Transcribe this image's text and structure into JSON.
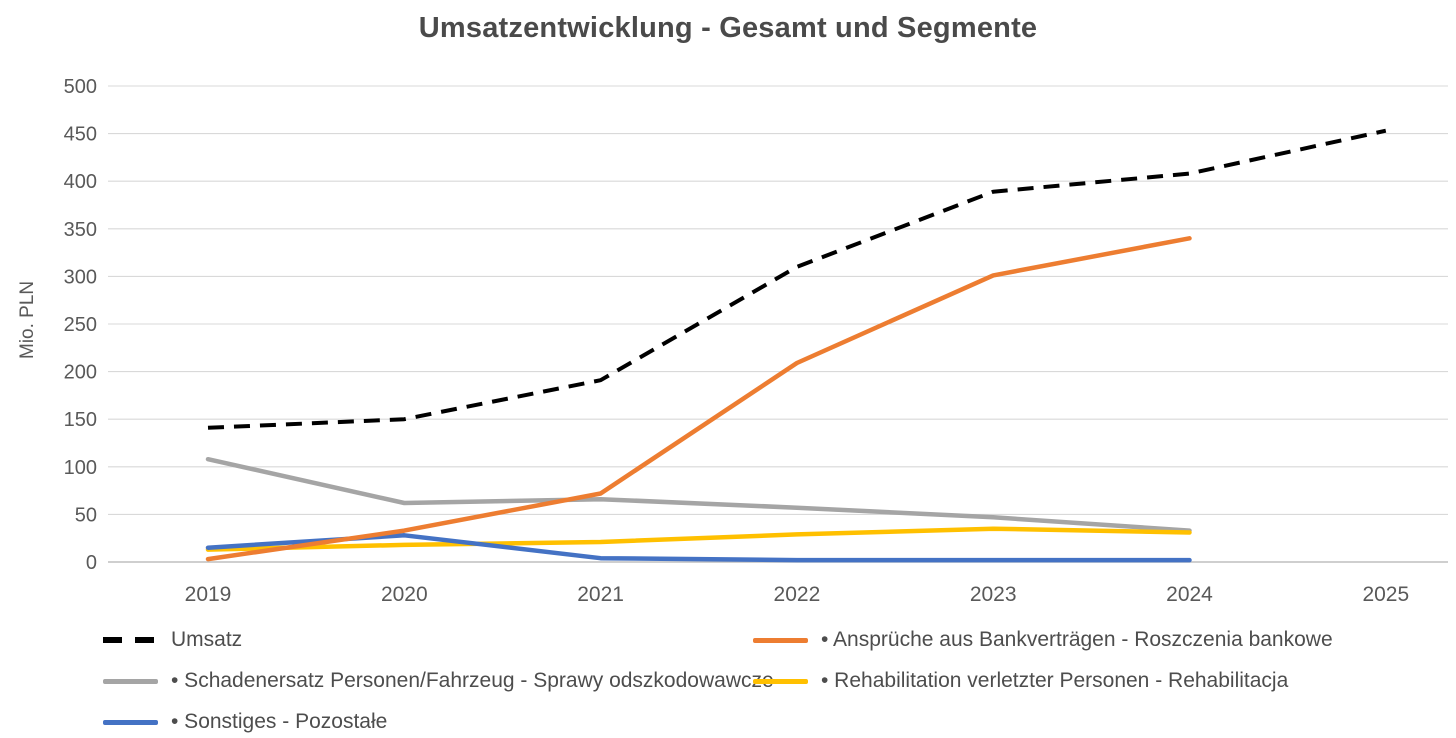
{
  "chart_data": {
    "type": "line",
    "title": "Umsatzentwicklung - Gesamt und Segmente",
    "ylabel": "Mio. PLN",
    "xlabel": "",
    "categories": [
      "2019",
      "2020",
      "2021",
      "2022",
      "2023",
      "2024",
      "2025"
    ],
    "y_ticks": [
      0,
      50,
      100,
      150,
      200,
      250,
      300,
      350,
      400,
      450,
      500
    ],
    "ylim": [
      0,
      500
    ],
    "grid": true,
    "legend_position": "bottom",
    "series": [
      {
        "id": "umsatz",
        "name": "Umsatz",
        "color": "#000000",
        "dash": true,
        "values": [
          141,
          150,
          191,
          310,
          389,
          408,
          453
        ]
      },
      {
        "id": "bankvertraege",
        "name": "Ansprüche aus Bankverträgen - Roszczenia bankowe",
        "color": "#ED7D31",
        "dash": false,
        "values": [
          3,
          33,
          72,
          209,
          301,
          340
        ]
      },
      {
        "id": "schadenersatz",
        "name": "Schadenersatz Personen/Fahrzeug - Sprawy odszkodowawcze",
        "color": "#A5A5A5",
        "dash": false,
        "values": [
          108,
          62,
          66,
          57,
          47,
          33
        ]
      },
      {
        "id": "rehabilitation",
        "name": "Rehabilitation verletzter Personen - Rehabilitacja",
        "color": "#FFC000",
        "dash": false,
        "values": [
          13,
          18,
          21,
          29,
          35,
          31
        ]
      },
      {
        "id": "sonstiges",
        "name": "Sonstiges - Pozostałe",
        "color": "#4472C4",
        "dash": false,
        "values": [
          15,
          28,
          4,
          2,
          2,
          2
        ]
      }
    ],
    "legend": [
      {
        "id": "umsatz",
        "label": "Umsatz",
        "color": "#000000",
        "dash": true
      },
      {
        "id": "bankvertraege",
        "label": "• Ansprüche aus Bankverträgen - Roszczenia bankowe",
        "color": "#ED7D31",
        "dash": false
      },
      {
        "id": "schadenersatz",
        "label": "• Schadenersatz Personen/Fahrzeug - Sprawy odszkodowawcze",
        "color": "#A5A5A5",
        "dash": false
      },
      {
        "id": "rehabilitation",
        "label": "• Rehabilitation verletzter Personen - Rehabilitacja",
        "color": "#FFC000",
        "dash": false
      },
      {
        "id": "sonstiges",
        "label": "• Sonstiges - Pozostałe",
        "color": "#4472C4",
        "dash": false
      }
    ],
    "colors": {
      "gridline": "#d9d9d9",
      "axis_line": "#bfbfbf",
      "tick_text": "#595959",
      "title_text": "#4a4a4a",
      "legend_text": "#4d4d4d"
    }
  }
}
